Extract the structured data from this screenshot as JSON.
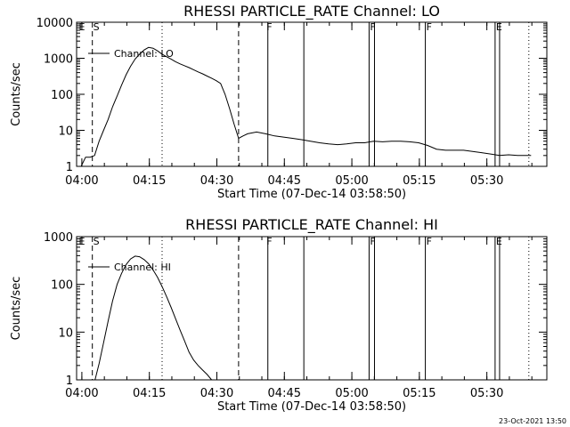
{
  "footer": {
    "stamp": "23-Oct-2021 13:50"
  },
  "chart_data": [
    {
      "type": "line",
      "title": "RHESSI PARTICLE_RATE Channel: LO",
      "xlabel": "Start Time (07-Dec-14 03:58:50)",
      "ylabel": "Counts/sec",
      "yscale": "log",
      "ylim": [
        1,
        10000
      ],
      "xlim_min": [
        0,
        104.5
      ],
      "xtick_labels": [
        "04:00",
        "04:15",
        "04:30",
        "04:45",
        "05:00",
        "05:15",
        "05:30"
      ],
      "xtick_min": [
        1.17,
        16.17,
        31.17,
        46.17,
        61.17,
        76.17,
        91.17
      ],
      "ytick_labels": [
        "1",
        "10",
        "100",
        "1000",
        "10000"
      ],
      "ytick_values": [
        1,
        10,
        100,
        1000,
        10000
      ],
      "legend": "Channel: LO",
      "flags": [
        {
          "label": "E",
          "min": 0.3
        },
        {
          "label": "S",
          "min": 3.5
        },
        {
          "label": "F",
          "min": 42.0
        },
        {
          "label": "F",
          "min": 65.0
        },
        {
          "label": "F",
          "min": 77.5
        },
        {
          "label": "E",
          "min": 93.0
        }
      ],
      "markers": {
        "dashed_min": [
          3.5,
          36.0
        ],
        "dotted_min": [
          19.0,
          100.5
        ],
        "solid_min": [
          42.5,
          50.5,
          65.0,
          66.2,
          77.5,
          93.0,
          94.0
        ]
      },
      "series": [
        {
          "x": [
            0,
            1,
            2,
            3,
            4,
            5,
            6,
            7,
            8,
            9,
            10,
            11,
            12,
            13,
            14,
            15,
            16,
            17,
            18,
            19,
            20,
            21,
            22,
            23,
            24,
            25,
            26,
            27,
            28,
            29,
            30,
            31,
            32,
            33,
            34,
            35,
            36,
            37,
            38,
            40,
            42,
            44,
            46,
            48,
            50,
            52,
            54,
            56,
            58,
            60,
            62,
            64,
            66,
            68,
            70,
            72,
            74,
            76,
            78,
            80,
            82,
            84,
            86,
            88,
            90,
            92,
            94,
            96,
            98,
            100,
            101
          ],
          "y": [
            1,
            1,
            1.8,
            1.8,
            2,
            5,
            10,
            20,
            45,
            90,
            180,
            350,
            600,
            950,
            1300,
            1700,
            2000,
            1900,
            1600,
            1300,
            1100,
            950,
            800,
            700,
            620,
            550,
            480,
            420,
            370,
            320,
            280,
            240,
            200,
            100,
            40,
            15,
            6,
            7,
            8,
            9,
            8,
            7,
            6.5,
            6,
            5.5,
            5,
            4.5,
            4.2,
            4,
            4.2,
            4.5,
            4.5,
            5,
            4.8,
            5,
            5,
            4.8,
            4.5,
            3.8,
            3,
            2.8,
            2.8,
            2.8,
            2.6,
            2.4,
            2.2,
            2.0,
            2.1,
            2.0,
            2.0,
            2.0
          ]
        }
      ]
    },
    {
      "type": "line",
      "title": "RHESSI PARTICLE_RATE Channel: HI",
      "xlabel": "Start Time (07-Dec-14 03:58:50)",
      "ylabel": "Counts/sec",
      "yscale": "log",
      "ylim": [
        1,
        1000
      ],
      "xlim_min": [
        0,
        104.5
      ],
      "xtick_labels": [
        "04:00",
        "04:15",
        "04:30",
        "04:45",
        "05:00",
        "05:15",
        "05:30"
      ],
      "xtick_min": [
        1.17,
        16.17,
        31.17,
        46.17,
        61.17,
        76.17,
        91.17
      ],
      "ytick_labels": [
        "1",
        "10",
        "100",
        "1000"
      ],
      "ytick_values": [
        1,
        10,
        100,
        1000
      ],
      "legend": "Channel: HI",
      "flags": [
        {
          "label": "E",
          "min": 0.3
        },
        {
          "label": "S",
          "min": 3.5
        },
        {
          "label": "F",
          "min": 42.0
        },
        {
          "label": "F",
          "min": 65.0
        },
        {
          "label": "F",
          "min": 77.5
        },
        {
          "label": "E",
          "min": 93.0
        }
      ],
      "markers": {
        "dashed_min": [
          3.5,
          36.0
        ],
        "dotted_min": [
          19.0,
          100.5
        ],
        "solid_min": [
          42.5,
          50.5,
          65.0,
          66.2,
          77.5,
          93.0,
          94.0
        ]
      },
      "series": [
        {
          "x": [
            4.1,
            5,
            6,
            7,
            8,
            9,
            10,
            11,
            12,
            13,
            14,
            15,
            16,
            17,
            18,
            19,
            20,
            21,
            22,
            23,
            24,
            25,
            26,
            27,
            28,
            29,
            30
          ],
          "y": [
            1,
            2.2,
            6,
            17,
            45,
            100,
            170,
            260,
            340,
            390,
            380,
            330,
            270,
            200,
            140,
            90,
            55,
            33,
            19,
            11,
            6.5,
            3.8,
            2.6,
            2.0,
            1.6,
            1.3,
            1
          ]
        }
      ]
    }
  ]
}
